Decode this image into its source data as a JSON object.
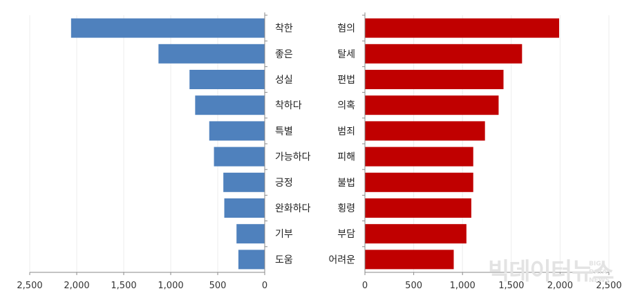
{
  "chart_data": [
    {
      "type": "bar",
      "orientation": "horizontal",
      "direction": "right-to-left",
      "categories": [
        "착한",
        "좋은",
        "성실",
        "착하다",
        "특별",
        "가능하다",
        "긍정",
        "완화하다",
        "기부",
        "도움"
      ],
      "values": [
        2060,
        1130,
        800,
        740,
        590,
        540,
        440,
        430,
        300,
        280
      ],
      "xlim": [
        0,
        2500
      ],
      "xticks": [
        "2,500",
        "2,000",
        "1,500",
        "1,000",
        "500",
        "0"
      ],
      "xtick_values": [
        2500,
        2000,
        1500,
        1000,
        500,
        0
      ],
      "color": "#4f81bd",
      "grid": true
    },
    {
      "type": "bar",
      "orientation": "horizontal",
      "direction": "left-to-right",
      "categories": [
        "혐의",
        "탈세",
        "편법",
        "의혹",
        "범죄",
        "피해",
        "불법",
        "횡령",
        "부담",
        "어려운"
      ],
      "values": [
        1990,
        1610,
        1420,
        1370,
        1230,
        1110,
        1110,
        1090,
        1040,
        910
      ],
      "xlim": [
        0,
        2500
      ],
      "xticks": [
        "0",
        "500",
        "1,000",
        "1,500",
        "2,000",
        "2,500"
      ],
      "xtick_values": [
        0,
        500,
        1000,
        1500,
        2000,
        2500
      ],
      "color": "#c00000",
      "grid": true
    }
  ],
  "watermark": {
    "main": "빅데이터뉴스",
    "side": [
      "BIG",
      "DATA",
      "NEWS"
    ]
  }
}
